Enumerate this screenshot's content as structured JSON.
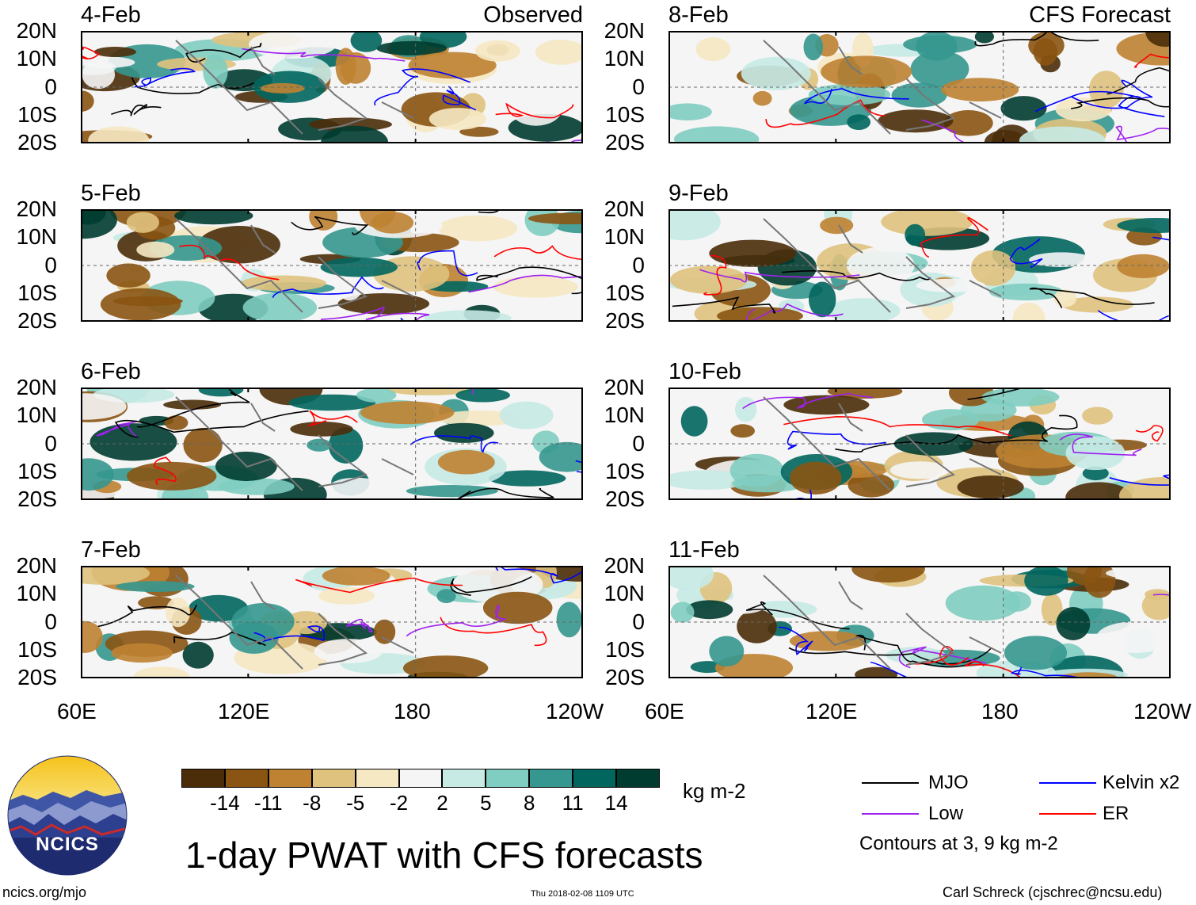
{
  "figure": {
    "title": "1-day PWAT with CFS forecasts",
    "left_column_label": "Observed",
    "right_column_label": "CFS Forecast"
  },
  "panels": {
    "observed": [
      {
        "date": "4-Feb"
      },
      {
        "date": "5-Feb"
      },
      {
        "date": "6-Feb"
      },
      {
        "date": "7-Feb"
      }
    ],
    "forecast": [
      {
        "date": "8-Feb"
      },
      {
        "date": "9-Feb"
      },
      {
        "date": "10-Feb"
      },
      {
        "date": "11-Feb"
      }
    ]
  },
  "axes": {
    "y_ticks": [
      "20N",
      "10N",
      "0",
      "10S",
      "20S"
    ],
    "x_ticks": [
      "60E",
      "120E",
      "180",
      "120W"
    ]
  },
  "colorbar": {
    "unit": "kg m-2",
    "tick_labels": [
      "-14",
      "-11",
      "-8",
      "-5",
      "-2",
      "2",
      "5",
      "8",
      "11",
      "14"
    ],
    "colors": [
      "#4b2d0a",
      "#8a5412",
      "#bf8232",
      "#dfc27d",
      "#f6e8c3",
      "#f5f5f5",
      "#c7eae5",
      "#80cdc1",
      "#35978f",
      "#01665e",
      "#003c30"
    ]
  },
  "legend": {
    "items": [
      {
        "label": "MJO",
        "color": "#000000"
      },
      {
        "label": "Kelvin x2",
        "color": "#0000ff"
      },
      {
        "label": "Low",
        "color": "#a020f0"
      },
      {
        "label": "ER",
        "color": "#ff0000"
      }
    ],
    "note": "Contours at 3, 9 kg m-2"
  },
  "logo": {
    "text": "NCICS"
  },
  "footer": {
    "website": "ncics.org/mjo",
    "timestamp": "Thu 2018-02-08 1109 UTC",
    "credit": "Carl Schreck (cjschrec@ncsu.edu)"
  }
}
